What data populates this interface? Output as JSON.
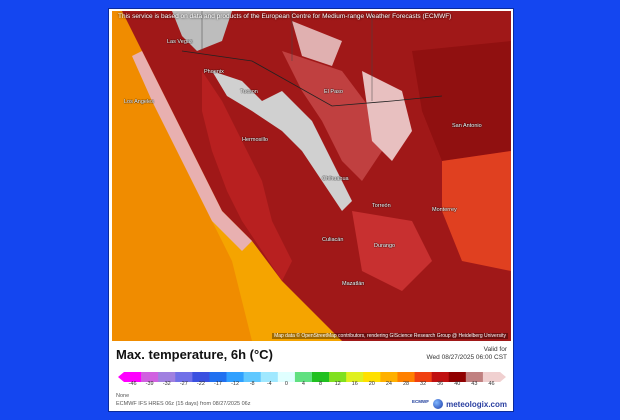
{
  "map": {
    "credit": "This service is based on data and products of the European Centre for Medium-range Weather Forecasts (ECMWF)",
    "attribution": "Map data © OpenStreetMap contributors, rendering GIScience Research Group @ Heidelberg University",
    "cities": [
      {
        "name": "Las Vegas"
      },
      {
        "name": "Los Angeles"
      },
      {
        "name": "Phoenix"
      },
      {
        "name": "Tucson"
      },
      {
        "name": "El Paso"
      },
      {
        "name": "Chihuahua"
      },
      {
        "name": "Hermosillo"
      },
      {
        "name": "Torreón"
      },
      {
        "name": "Culiacán"
      },
      {
        "name": "Monterrey"
      },
      {
        "name": "Mazatlán"
      },
      {
        "name": "Durango"
      },
      {
        "name": "San Antonio"
      }
    ]
  },
  "legend": {
    "title": "Max. temperature, 6h (°C)",
    "valid_label": "Valid for",
    "valid_time": "Wed 08/27/2025 06:00 CST",
    "model": "ECMWF IFS HRES 06z (15 days) from 08/27/2025 06z",
    "footnote": "None",
    "brand": "meteologix.com",
    "ecmwf": "ECMWF",
    "ticks": [
      "-46",
      "-39",
      "-32",
      "-27",
      "-22",
      "-17",
      "-12",
      "-8",
      "-4",
      "0",
      "4",
      "8",
      "12",
      "16",
      "20",
      "24",
      "28",
      "32",
      "36",
      "40",
      "43",
      "46"
    ],
    "colors": [
      "#ff00ff",
      "#d060e0",
      "#a080e0",
      "#7070e8",
      "#3a50e0",
      "#2070f0",
      "#30a0ff",
      "#60c8ff",
      "#a0e8ff",
      "#e0ffff",
      "#60e080",
      "#20c020",
      "#80e020",
      "#e0f020",
      "#ffe000",
      "#ffb000",
      "#ff8000",
      "#f04010",
      "#c01010",
      "#900000",
      "#c08080",
      "#f0d0d0"
    ]
  }
}
